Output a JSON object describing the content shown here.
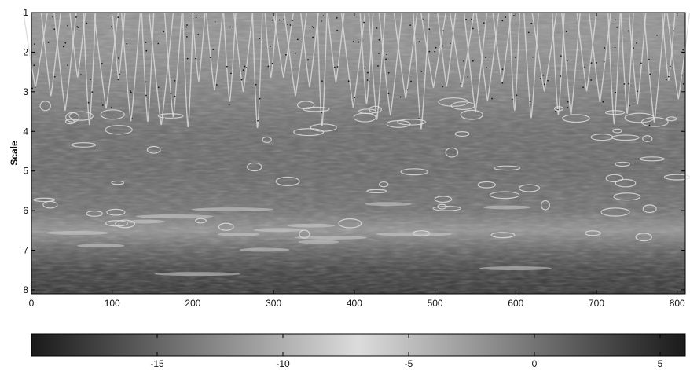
{
  "chart_data": {
    "type": "heatmap",
    "title": "",
    "xlabel": "",
    "ylabel": "Scale",
    "xlim": [
      0,
      810
    ],
    "ylim": [
      1,
      8.1
    ],
    "y_reversed": true,
    "x_ticks": [
      "0",
      "100",
      "200",
      "300",
      "400",
      "500",
      "600",
      "700",
      "800"
    ],
    "y_ticks": [
      "1",
      "2",
      "3",
      "4",
      "5",
      "6",
      "7",
      "8"
    ],
    "colormap": "gray",
    "colorbar": {
      "range": [
        -20,
        6
      ],
      "ticks": [
        "-15",
        "-10",
        "-5",
        "0",
        "5"
      ],
      "placement": "bottom",
      "dark_color": "#1a1a1a",
      "light_color": "#dcdcdc"
    },
    "rows": [
      {
        "scale": 1.0,
        "level": 0.62
      },
      {
        "scale": 2.0,
        "level": 0.6
      },
      {
        "scale": 3.0,
        "level": 0.52
      },
      {
        "scale": 4.0,
        "level": 0.42
      },
      {
        "scale": 5.0,
        "level": 0.4
      },
      {
        "scale": 6.0,
        "level": 0.45
      },
      {
        "scale": 6.5,
        "level": 0.62
      },
      {
        "scale": 7.0,
        "level": 0.38
      },
      {
        "scale": 7.5,
        "level": 0.22
      },
      {
        "scale": 8.1,
        "level": 0.14
      }
    ]
  }
}
